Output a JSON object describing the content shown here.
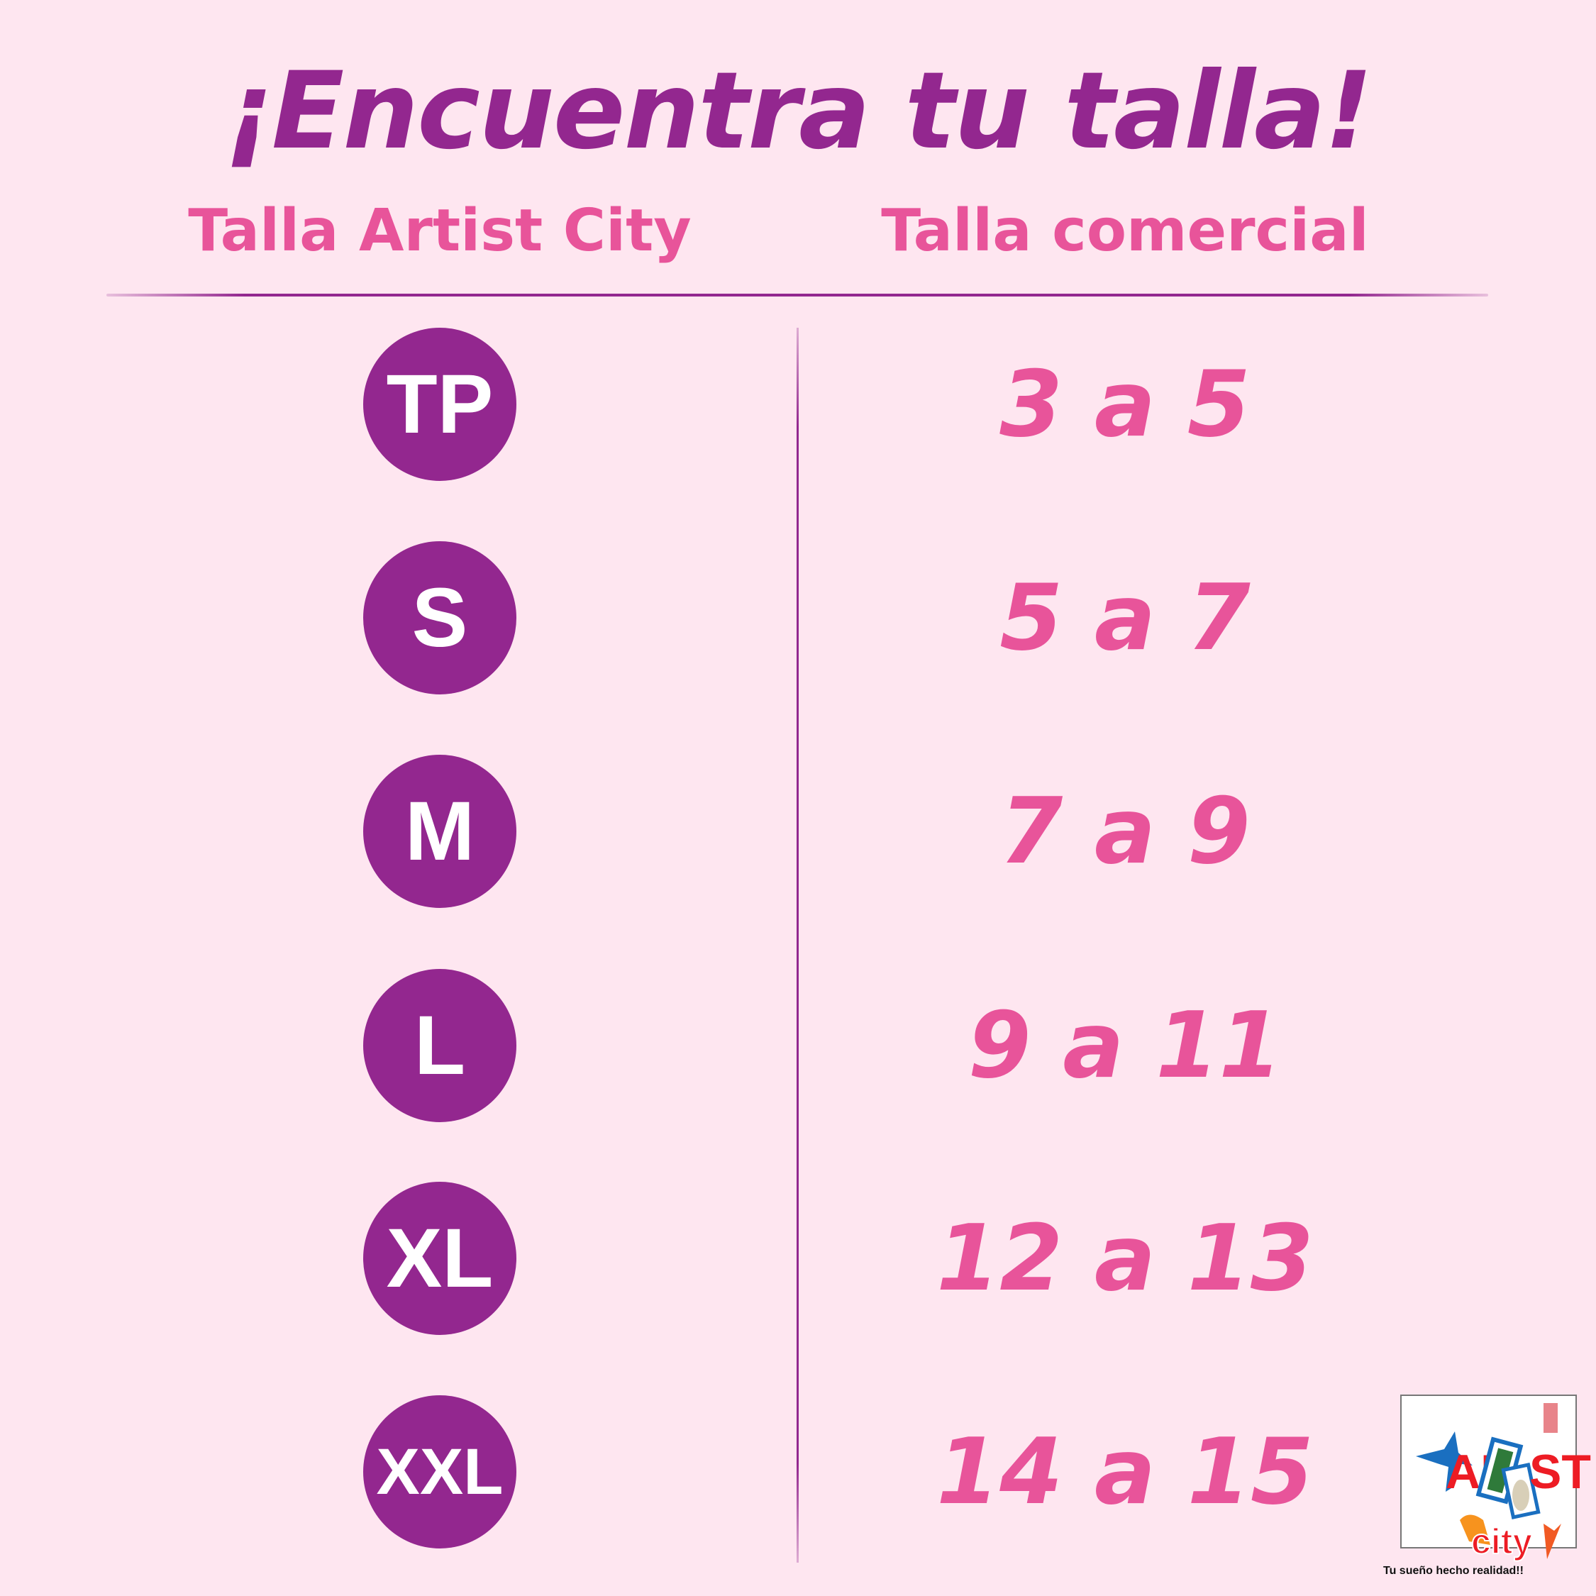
{
  "title": "¡Encuentra tu talla!",
  "headers": {
    "left": "Talla Artist City",
    "right": "Talla comercial"
  },
  "rows": [
    {
      "size": "TP",
      "range": "3 a 5"
    },
    {
      "size": "S",
      "range": "5 a 7"
    },
    {
      "size": "M",
      "range": "7 a 9"
    },
    {
      "size": "L",
      "range": "9 a 11"
    },
    {
      "size": "XL",
      "range": "12 a 13"
    },
    {
      "size": "XXL",
      "range": "14 a 15"
    }
  ],
  "logo": {
    "brand_text": "ARTIST city",
    "tagline": "Tu sueño hecho realidad!!"
  },
  "colors": {
    "background": "#fee6f0",
    "purple": "#93278f",
    "pink": "#e8549a"
  }
}
